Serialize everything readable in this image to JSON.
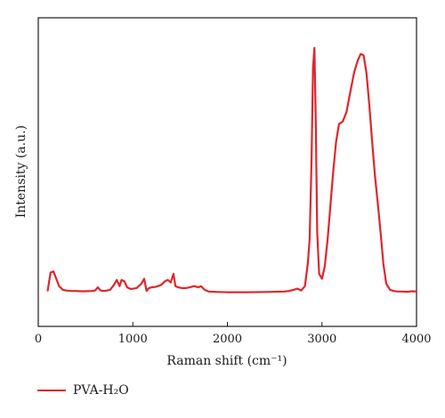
{
  "chart_data": {
    "type": "line",
    "title": "",
    "xlabel": "Raman shift (cm⁻¹)",
    "ylabel": "Intensity (a.u.)",
    "xlim": [
      0,
      4000
    ],
    "ylim": [
      0,
      1.05
    ],
    "xticks": [
      0,
      1000,
      2000,
      3000,
      4000
    ],
    "yticks_shown": false,
    "grid": false,
    "legend_position": "bottom-left, below plot",
    "series": [
      {
        "name": "PVA-H₂O",
        "color": "#e0262b",
        "x": [
          100,
          130,
          160,
          190,
          220,
          260,
          300,
          350,
          400,
          450,
          500,
          560,
          600,
          630,
          660,
          700,
          760,
          800,
          830,
          860,
          880,
          910,
          940,
          980,
          1040,
          1090,
          1120,
          1145,
          1170,
          1200,
          1250,
          1300,
          1340,
          1370,
          1400,
          1430,
          1450,
          1480,
          1520,
          1560,
          1600,
          1650,
          1690,
          1720,
          1760,
          1800,
          1900,
          2000,
          2200,
          2400,
          2600,
          2650,
          2700,
          2740,
          2780,
          2820,
          2850,
          2870,
          2890,
          2905,
          2920,
          2935,
          2950,
          2970,
          3000,
          3030,
          3060,
          3090,
          3120,
          3150,
          3180,
          3220,
          3260,
          3300,
          3340,
          3380,
          3410,
          3440,
          3470,
          3500,
          3530,
          3560,
          3590,
          3620,
          3650,
          3680,
          3720,
          3760,
          3800,
          3850,
          3900,
          3950,
          4000
        ],
        "y": [
          0.012,
          0.085,
          0.09,
          0.06,
          0.03,
          0.015,
          0.012,
          0.01,
          0.01,
          0.009,
          0.009,
          0.01,
          0.012,
          0.025,
          0.012,
          0.01,
          0.015,
          0.035,
          0.055,
          0.03,
          0.055,
          0.05,
          0.025,
          0.018,
          0.022,
          0.04,
          0.06,
          0.01,
          0.022,
          0.025,
          0.028,
          0.035,
          0.05,
          0.055,
          0.045,
          0.08,
          0.03,
          0.025,
          0.022,
          0.022,
          0.025,
          0.03,
          0.025,
          0.03,
          0.015,
          0.008,
          0.006,
          0.005,
          0.005,
          0.006,
          0.008,
          0.01,
          0.015,
          0.02,
          0.012,
          0.03,
          0.12,
          0.22,
          0.55,
          0.92,
          1.0,
          0.7,
          0.25,
          0.08,
          0.06,
          0.11,
          0.22,
          0.36,
          0.5,
          0.62,
          0.69,
          0.7,
          0.74,
          0.82,
          0.9,
          0.95,
          0.975,
          0.97,
          0.9,
          0.77,
          0.62,
          0.48,
          0.37,
          0.25,
          0.12,
          0.04,
          0.015,
          0.01,
          0.008,
          0.008,
          0.007,
          0.009,
          0.008
        ]
      }
    ]
  }
}
